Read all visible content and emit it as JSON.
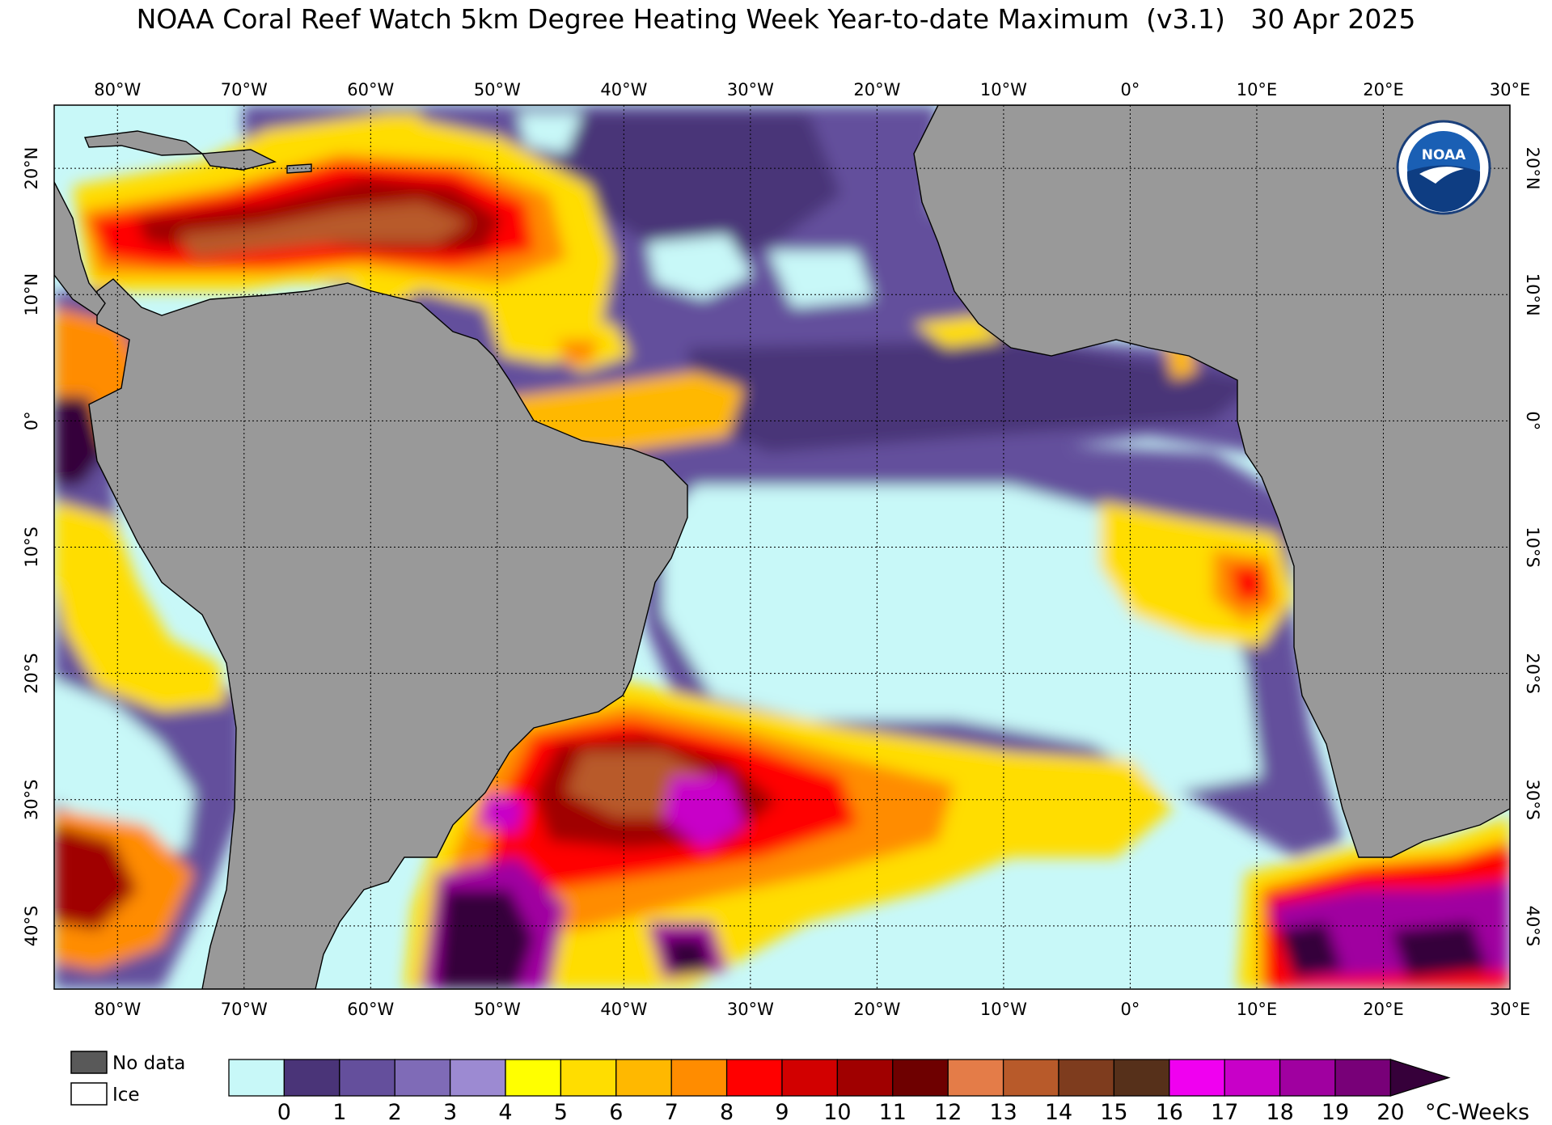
{
  "title": "NOAA Coral Reef Watch 5km Degree Heating Week Year-to-date Maximum  (v3.1)   30 Apr 2025",
  "map": {
    "lon_labels": [
      "80°W",
      "70°W",
      "60°W",
      "50°W",
      "40°W",
      "30°W",
      "20°W",
      "10°W",
      "0°",
      "10°E",
      "20°E",
      "30°E"
    ],
    "lat_labels": [
      "20°N",
      "10°N",
      "0°",
      "10°S",
      "20°S",
      "30°S",
      "40°S"
    ],
    "extent": {
      "lon": [
        -85,
        30
      ],
      "lat": [
        -45,
        25
      ]
    },
    "grid": true,
    "land_color": "#999999",
    "logo_text": "NOAA"
  },
  "legend": {
    "keys": [
      {
        "label": "No data",
        "color": "#595959"
      },
      {
        "label": "Ice",
        "color": "#ffffff"
      }
    ],
    "ticks": [
      "0",
      "1",
      "2",
      "3",
      "4",
      "5",
      "6",
      "7",
      "8",
      "9",
      "10",
      "11",
      "12",
      "13",
      "14",
      "15",
      "16",
      "17",
      "18",
      "19",
      "20"
    ],
    "unit": "°C-Weeks",
    "colors": [
      "#c8f8f8",
      "#4a3478",
      "#644f9c",
      "#7f6bb7",
      "#9c8ad2",
      "#ffff00",
      "#ffdd00",
      "#ffb800",
      "#ff8c00",
      "#ff0000",
      "#d20000",
      "#a00000",
      "#6e0000",
      "#e47c48",
      "#b85a2a",
      "#7e3c1e",
      "#56301a",
      "#f000f0",
      "#c800c8",
      "#a000a0",
      "#780078",
      "#36003a"
    ]
  }
}
